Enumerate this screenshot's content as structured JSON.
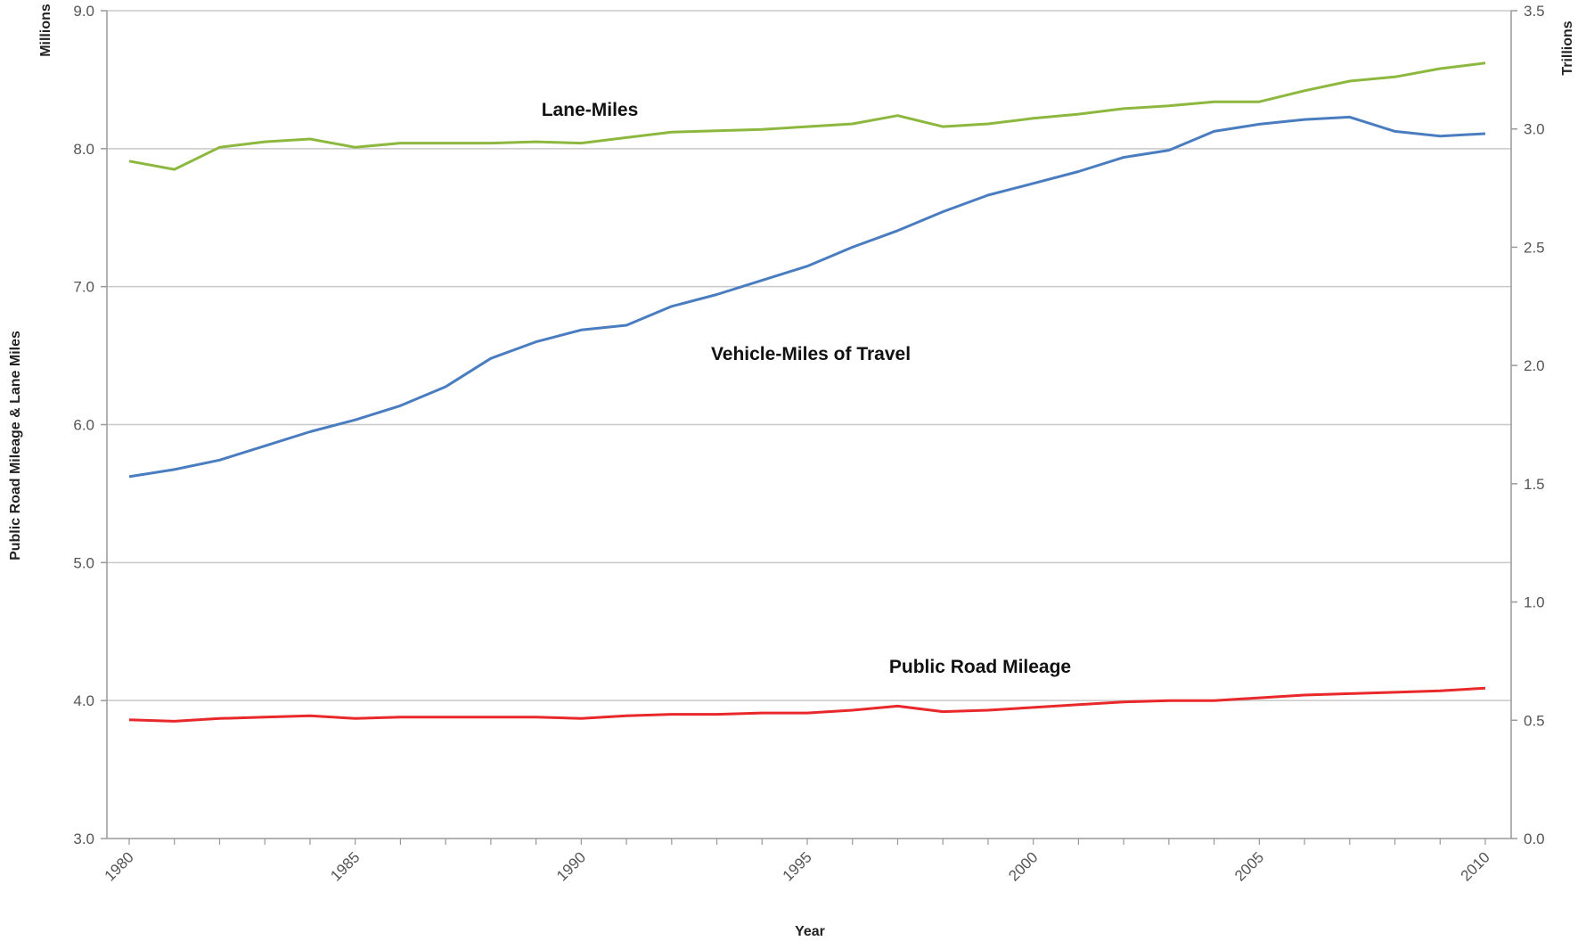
{
  "chart_data": {
    "type": "line",
    "xlabel": "Year",
    "ylabel": "Public Road Mileage & Lane Miles",
    "y_unit": "Millions",
    "y2_unit": "Trillions",
    "x_ticks": [
      "1980",
      "1985",
      "1990",
      "1995",
      "2000",
      "2005",
      "2010"
    ],
    "y_ticks": [
      "3.0",
      "4.0",
      "5.0",
      "6.0",
      "7.0",
      "8.0",
      "9.0"
    ],
    "y2_ticks": [
      "0.0",
      "0.5",
      "1.0",
      "1.5",
      "2.0",
      "2.5",
      "3.0",
      "3.5"
    ],
    "xlim": [
      1980,
      2010
    ],
    "ylim": [
      3.0,
      9.0
    ],
    "y2lim": [
      0.0,
      3.5
    ],
    "grid": true,
    "x": [
      1980,
      1981,
      1982,
      1983,
      1984,
      1985,
      1986,
      1987,
      1988,
      1989,
      1990,
      1991,
      1992,
      1993,
      1994,
      1995,
      1996,
      1997,
      1998,
      1999,
      2000,
      2001,
      2002,
      2003,
      2004,
      2005,
      2006,
      2007,
      2008,
      2009,
      2010
    ],
    "series": [
      {
        "name": "Lane-Miles",
        "axis": "left",
        "color": "#8db83f",
        "values": [
          7.91,
          7.85,
          8.01,
          8.05,
          8.07,
          8.01,
          8.04,
          8.04,
          8.04,
          8.05,
          8.04,
          8.08,
          8.12,
          8.13,
          8.14,
          8.16,
          8.18,
          8.24,
          8.16,
          8.18,
          8.22,
          8.25,
          8.29,
          8.31,
          8.34,
          8.34,
          8.42,
          8.49,
          8.52,
          8.58,
          8.62
        ]
      },
      {
        "name": "Vehicle-Miles of Travel",
        "axis": "right",
        "color": "#4a7dc0",
        "values": [
          1.53,
          1.56,
          1.6,
          1.66,
          1.72,
          1.77,
          1.83,
          1.91,
          2.03,
          2.1,
          2.15,
          2.17,
          2.25,
          2.3,
          2.36,
          2.42,
          2.5,
          2.57,
          2.65,
          2.72,
          2.77,
          2.82,
          2.88,
          2.91,
          2.99,
          3.02,
          3.04,
          3.05,
          2.99,
          2.97,
          2.98
        ]
      },
      {
        "name": "Public Road Mileage",
        "axis": "left",
        "color": "#e8282a",
        "values": [
          3.86,
          3.85,
          3.87,
          3.88,
          3.89,
          3.87,
          3.88,
          3.88,
          3.88,
          3.88,
          3.87,
          3.89,
          3.9,
          3.9,
          3.91,
          3.91,
          3.93,
          3.96,
          3.92,
          3.93,
          3.95,
          3.97,
          3.99,
          4.0,
          4.0,
          4.02,
          4.04,
          4.05,
          4.06,
          4.07,
          4.09
        ]
      }
    ]
  }
}
